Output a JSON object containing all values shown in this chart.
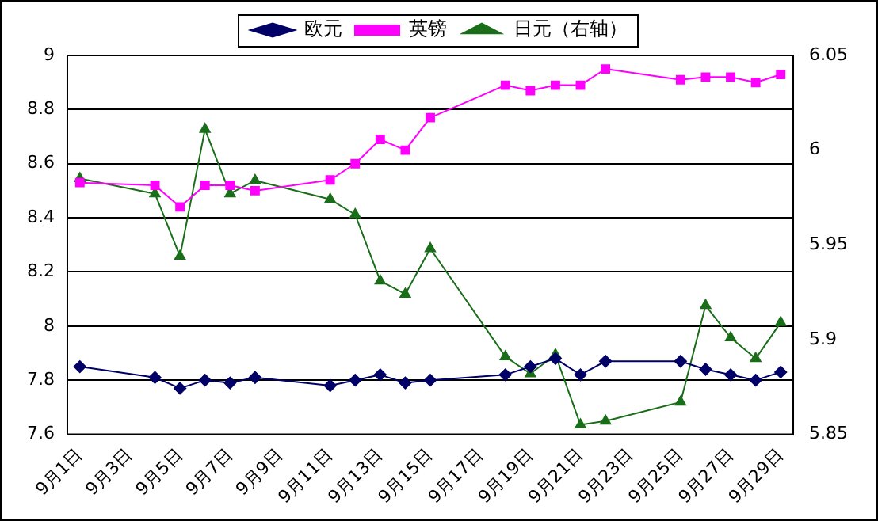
{
  "chart_data": {
    "type": "line",
    "categories": [
      "9月1日",
      null,
      "9月3日",
      null,
      "9月5日",
      null,
      "9月7日",
      null,
      "9月9日",
      null,
      "9月11日",
      null,
      "9月13日",
      null,
      "9月15日",
      null,
      "9月17日",
      null,
      "9月19日",
      null,
      "9月21日",
      null,
      "9月23日",
      null,
      "9月25日",
      null,
      "9月27日",
      null,
      "9月29日"
    ],
    "series": [
      {
        "name": "欧元",
        "color": "#000066",
        "marker": "diamond",
        "values": [
          7.85,
          null,
          null,
          7.81,
          7.77,
          7.8,
          7.79,
          7.81,
          null,
          null,
          7.78,
          7.8,
          7.82,
          7.79,
          7.8,
          null,
          null,
          7.82,
          7.85,
          7.88,
          7.82,
          7.87,
          null,
          null,
          7.87,
          7.84,
          7.82,
          7.8,
          7.83
        ]
      },
      {
        "name": "英镑",
        "color": "#ff00ff",
        "marker": "square",
        "values": [
          8.53,
          null,
          null,
          8.52,
          8.44,
          8.52,
          8.52,
          8.5,
          null,
          null,
          8.54,
          8.6,
          8.69,
          8.65,
          8.77,
          null,
          null,
          8.89,
          8.87,
          8.89,
          8.89,
          8.95,
          null,
          null,
          8.91,
          8.92,
          8.92,
          8.9,
          8.93
        ]
      },
      {
        "name": "日元（右轴）",
        "color": "#1a6e1a",
        "marker": "triangle",
        "axis": "y2",
        "values": [
          5.985,
          null,
          null,
          5.977,
          5.944,
          6.011,
          5.977,
          5.984,
          null,
          null,
          5.974,
          5.966,
          5.931,
          5.924,
          5.948,
          null,
          null,
          5.891,
          5.882,
          5.892,
          5.855,
          5.857,
          null,
          null,
          5.867,
          5.918,
          5.901,
          5.89,
          5.909
        ]
      }
    ],
    "ylim": [
      7.6,
      9
    ],
    "yticks": [
      7.6,
      7.8,
      8,
      8.2,
      8.4,
      8.6,
      8.8,
      9
    ],
    "y2lim": [
      5.85,
      6.05
    ],
    "y2ticks": [
      5.85,
      5.9,
      5.95,
      6,
      6.05
    ],
    "grid": "y",
    "legend": "top"
  }
}
